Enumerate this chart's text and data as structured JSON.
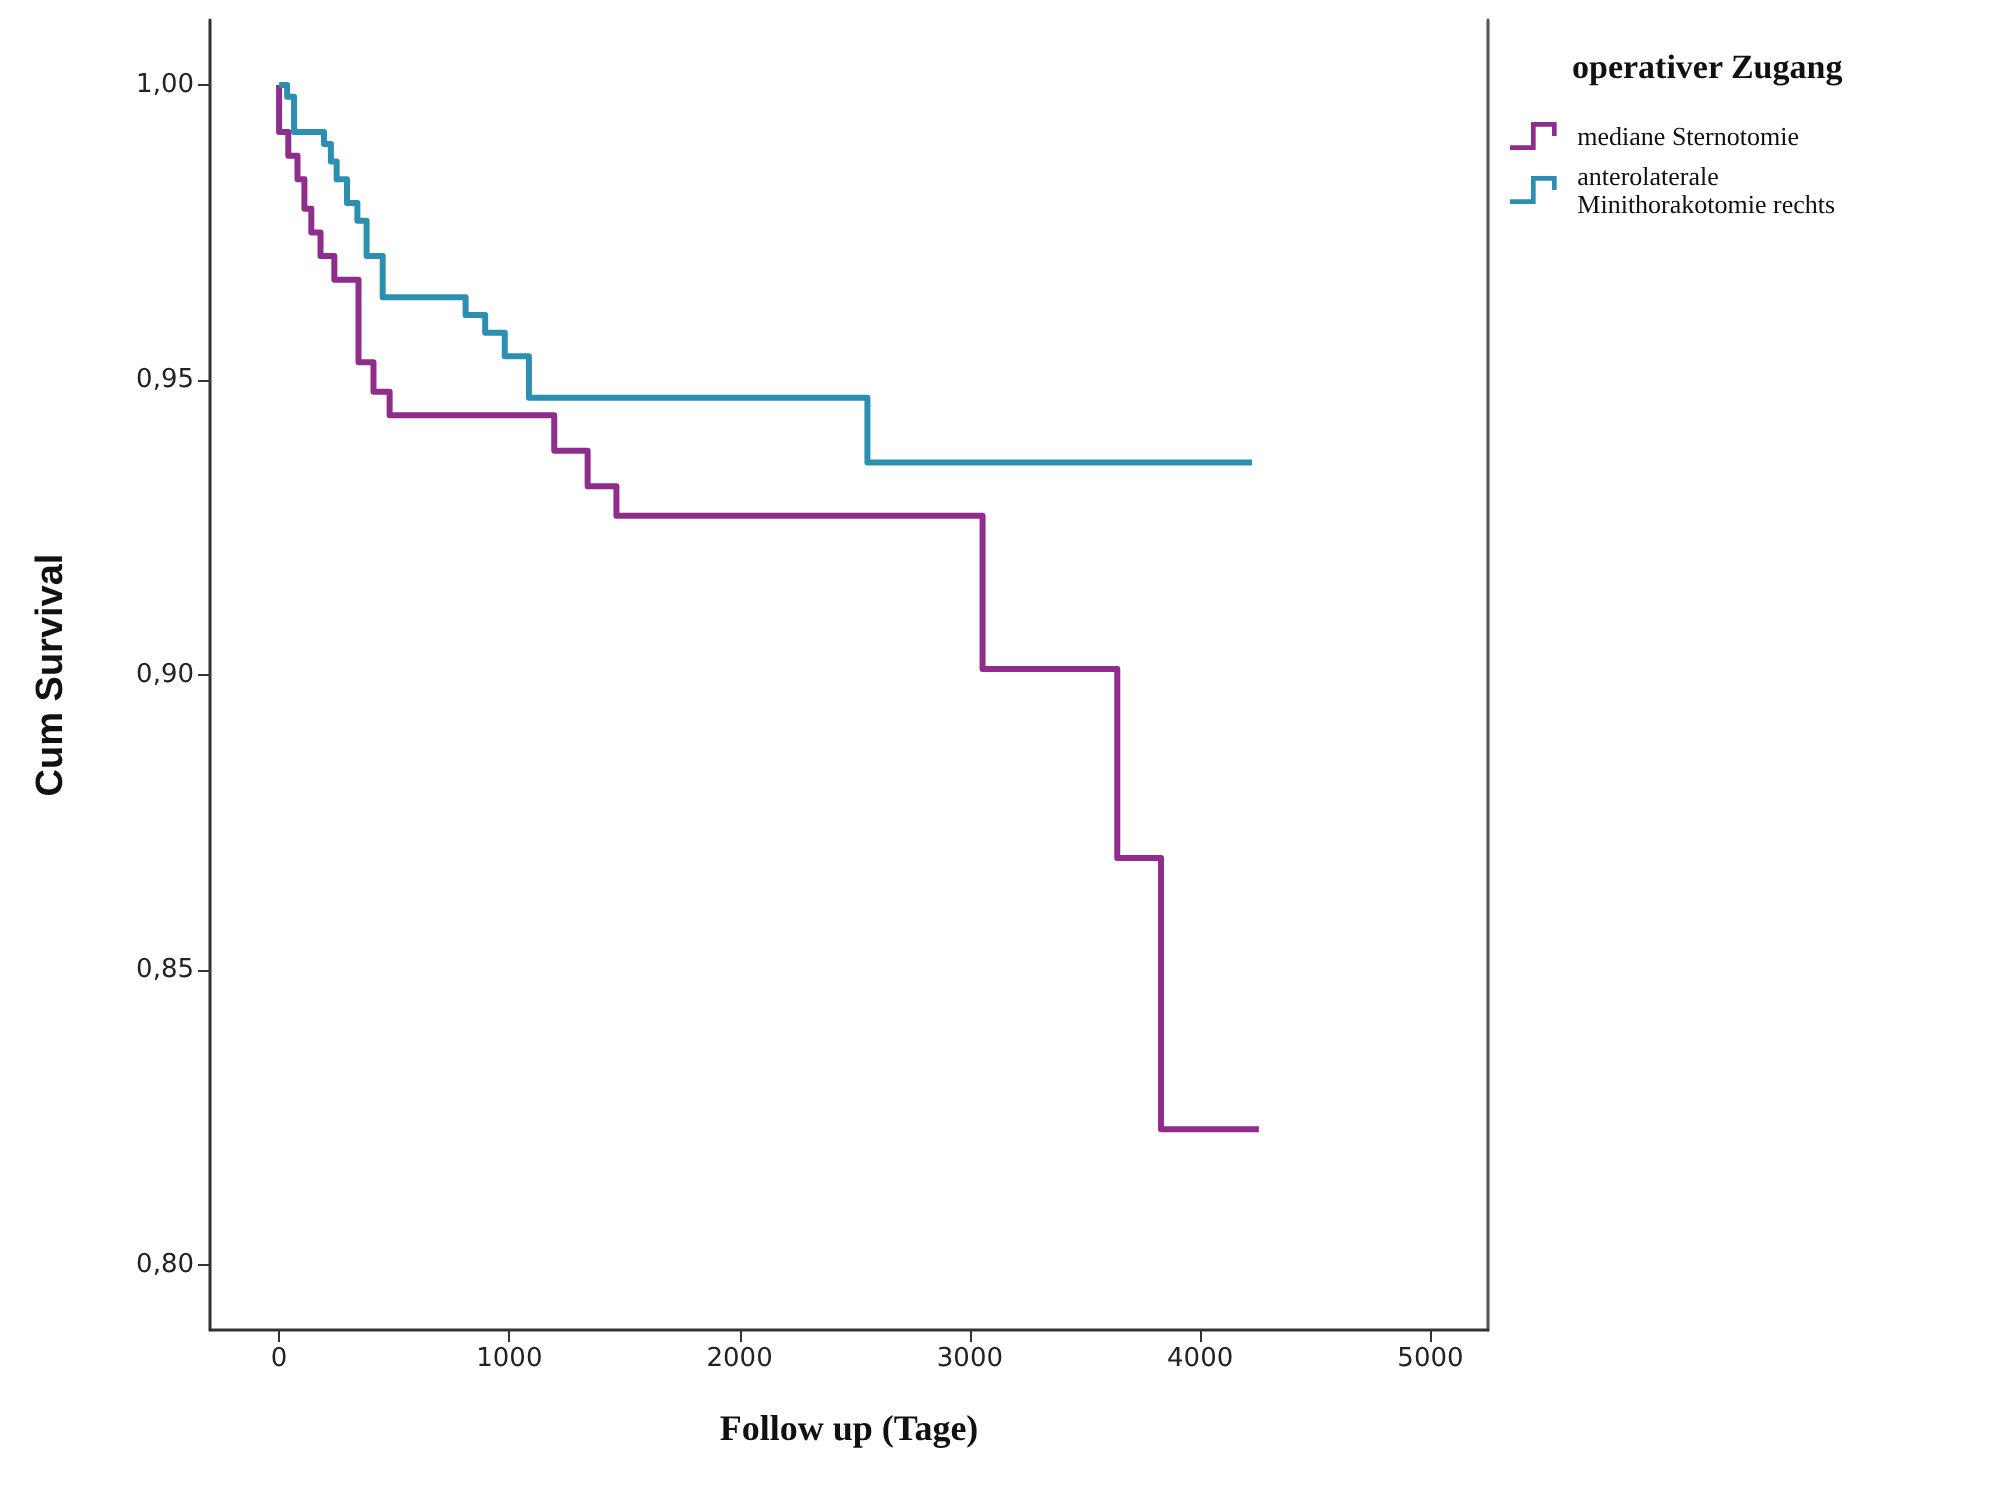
{
  "chart_data": {
    "type": "step",
    "xlabel": "Follow up (Tage)",
    "ylabel": "Cum Survival",
    "legend_title": "operativer Zugang",
    "legend": "top right",
    "grid": false,
    "xlim": [
      -300,
      5250
    ],
    "xticks": [
      0,
      1000,
      2000,
      3000,
      4000,
      5000
    ],
    "ylim": [
      0.789,
      1.011
    ],
    "yticks": [
      {
        "value": 0.8,
        "label": "0,80"
      },
      {
        "value": 0.85,
        "label": "0,85"
      },
      {
        "value": 0.9,
        "label": "0,90"
      },
      {
        "value": 0.95,
        "label": "0,95"
      },
      {
        "value": 1.0,
        "label": "1,00"
      }
    ],
    "series": [
      {
        "name": "mediane Sternotomie",
        "color": "#8e2d8c",
        "x": [
          0,
          0,
          40,
          80,
          110,
          140,
          180,
          240,
          345,
          410,
          480,
          1195,
          1340,
          1465,
          3055,
          3640,
          3830,
          4255
        ],
        "values": [
          1.0,
          0.992,
          0.988,
          0.984,
          0.979,
          0.975,
          0.971,
          0.967,
          0.953,
          0.948,
          0.944,
          0.938,
          0.932,
          0.927,
          0.901,
          0.869,
          0.823,
          0.823
        ]
      },
      {
        "name": "anterolaterale Minithorakotomie rechts",
        "color": "#2c8fb2",
        "x": [
          0,
          35,
          65,
          195,
          225,
          250,
          295,
          340,
          380,
          450,
          810,
          895,
          980,
          1085,
          2555,
          4225
        ],
        "values": [
          1.0,
          0.998,
          0.992,
          0.99,
          0.987,
          0.984,
          0.98,
          0.977,
          0.971,
          0.964,
          0.961,
          0.958,
          0.954,
          0.947,
          0.936,
          0.936
        ]
      }
    ]
  }
}
